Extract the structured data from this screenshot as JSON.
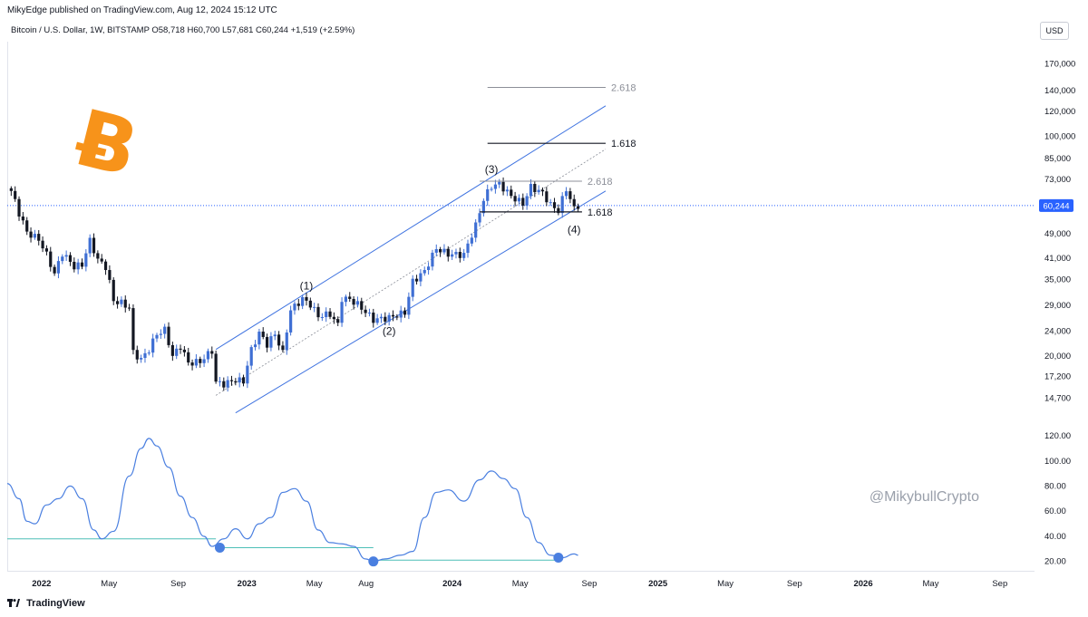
{
  "header": {
    "published_line": "MikyEdge published on TradingView.com, Aug 12, 2024 15:12 UTC",
    "symbol_line": "Bitcoin / U.S. Dollar, 1W, BITSTAMP  O58,718  H60,700  L57,681  C60,244  +1,519 (+2.59%)",
    "currency_button": "USD"
  },
  "footer": {
    "brand": "TradingView"
  },
  "watermark": "@MikybullCrypto",
  "colors": {
    "up_candle": "#3f6fd4",
    "down_candle": "#131722",
    "channel": "#3f73e0",
    "oscillator": "#4a7fe0",
    "oscillator_level": "#4dbfb7",
    "fib_dark": "#131722",
    "fib_light": "#8c8f98",
    "bitcoin_orange": "#f7931a",
    "price_label_bg": "#2962ff"
  },
  "chart_data": [
    {
      "type": "candlestick",
      "title": "Bitcoin / U.S. Dollar, 1W, BITSTAMP",
      "y_scale": "log",
      "ylim": [
        12000,
        200000
      ],
      "y_ticks": [
        14700,
        17200,
        20000,
        24000,
        29000,
        35000,
        41000,
        49000,
        60244,
        73000,
        85000,
        100000,
        120000,
        140000,
        170000
      ],
      "y_tick_labels": [
        "14,700",
        "17,200",
        "20,000",
        "24,000",
        "29,000",
        "35,000",
        "41,000",
        "49,000",
        "60,244",
        "73,000",
        "85,000",
        "100,000",
        "120,000",
        "140,000",
        "170,000"
      ],
      "last_price": 60244,
      "last_price_label": "60,244",
      "x_range": [
        "2021-11-01",
        "2026-10-31"
      ],
      "x_ticks": [
        {
          "date": "2022-01-01",
          "label": "2022"
        },
        {
          "date": "2022-05-01",
          "label": "May"
        },
        {
          "date": "2022-09-01",
          "label": "Sep"
        },
        {
          "date": "2023-01-01",
          "label": "2023"
        },
        {
          "date": "2023-05-01",
          "label": "May"
        },
        {
          "date": "2023-08-01",
          "label": "Aug"
        },
        {
          "date": "2024-01-01",
          "label": "2024"
        },
        {
          "date": "2024-05-01",
          "label": "May"
        },
        {
          "date": "2024-09-01",
          "label": "Sep"
        },
        {
          "date": "2025-01-01",
          "label": "2025"
        },
        {
          "date": "2025-05-01",
          "label": "May"
        },
        {
          "date": "2025-09-01",
          "label": "Sep"
        },
        {
          "date": "2026-01-01",
          "label": "2026"
        },
        {
          "date": "2026-05-01",
          "label": "May"
        },
        {
          "date": "2026-09-01",
          "label": "Sep"
        }
      ],
      "price_path": [
        [
          "2021-11-08",
          67000
        ],
        [
          "2021-11-22",
          57000
        ],
        [
          "2021-12-06",
          49500
        ],
        [
          "2021-12-27",
          47000
        ],
        [
          "2022-01-10",
          42000
        ],
        [
          "2022-01-24",
          36500
        ],
        [
          "2022-02-07",
          42500
        ],
        [
          "2022-02-28",
          38500
        ],
        [
          "2022-03-14",
          39000
        ],
        [
          "2022-03-28",
          46500
        ],
        [
          "2022-04-11",
          40500
        ],
        [
          "2022-04-25",
          38500
        ],
        [
          "2022-05-09",
          30000
        ],
        [
          "2022-05-23",
          29500
        ],
        [
          "2022-06-06",
          28500
        ],
        [
          "2022-06-13",
          20500
        ],
        [
          "2022-06-27",
          19500
        ],
        [
          "2022-07-11",
          21000
        ],
        [
          "2022-07-25",
          23500
        ],
        [
          "2022-08-08",
          24200
        ],
        [
          "2022-08-22",
          20000
        ],
        [
          "2022-09-05",
          21500
        ],
        [
          "2022-09-19",
          19000
        ],
        [
          "2022-10-10",
          19200
        ],
        [
          "2022-10-31",
          20800
        ],
        [
          "2022-11-07",
          16500
        ],
        [
          "2022-11-21",
          16300
        ],
        [
          "2022-12-12",
          16800
        ],
        [
          "2022-12-26",
          16600
        ],
        [
          "2023-01-09",
          20900
        ],
        [
          "2023-01-23",
          23700
        ],
        [
          "2023-02-06",
          21800
        ],
        [
          "2023-02-20",
          23500
        ],
        [
          "2023-03-06",
          20400
        ],
        [
          "2023-03-20",
          28000
        ],
        [
          "2023-04-10",
          30400
        ],
        [
          "2023-04-24",
          29200
        ],
        [
          "2023-05-08",
          26800
        ],
        [
          "2023-05-29",
          27200
        ],
        [
          "2023-06-12",
          25100
        ],
        [
          "2023-06-19",
          30500
        ],
        [
          "2023-07-03",
          30300
        ],
        [
          "2023-07-17",
          29200
        ],
        [
          "2023-08-14",
          26100
        ],
        [
          "2023-09-11",
          26500
        ],
        [
          "2023-10-09",
          27500
        ],
        [
          "2023-10-23",
          34500
        ],
        [
          "2023-11-13",
          37200
        ],
        [
          "2023-12-04",
          44000
        ],
        [
          "2023-12-25",
          42200
        ],
        [
          "2024-01-22",
          42000
        ],
        [
          "2024-02-12",
          52000
        ],
        [
          "2024-02-26",
          63000
        ],
        [
          "2024-03-11",
          69500
        ],
        [
          "2024-03-25",
          70500
        ],
        [
          "2024-04-15",
          64500
        ],
        [
          "2024-05-06",
          61000
        ],
        [
          "2024-05-20",
          69000
        ],
        [
          "2024-06-10",
          66000
        ],
        [
          "2024-06-24",
          60500
        ],
        [
          "2024-07-08",
          58000
        ],
        [
          "2024-07-22",
          68000
        ],
        [
          "2024-08-05",
          58700
        ],
        [
          "2024-08-12",
          60244
        ]
      ],
      "channel": {
        "upper_line": [
          [
            "2022-11-07",
            21000
          ],
          [
            "2024-09-30",
            125000
          ]
        ],
        "middle_line": [
          [
            "2022-11-07",
            15000
          ],
          [
            "2024-09-30",
            91000
          ]
        ],
        "lower_line": [
          [
            "2022-12-12",
            13200
          ],
          [
            "2024-09-30",
            67000
          ]
        ]
      },
      "fib_levels": [
        {
          "label": "2.618",
          "value": 143000,
          "from": "2024-03-04",
          "to": "2024-09-30",
          "style": "light"
        },
        {
          "label": "1.618",
          "value": 95000,
          "from": "2024-03-04",
          "to": "2024-09-30",
          "style": "dark"
        },
        {
          "label": "2.618",
          "value": 72000,
          "from": "2024-02-19",
          "to": "2024-08-19",
          "style": "light"
        },
        {
          "label": "1.618",
          "value": 57500,
          "from": "2024-02-19",
          "to": "2024-08-19",
          "style": "dark"
        }
      ],
      "wave_labels": [
        {
          "label": "(1)",
          "date": "2023-04-17",
          "value": 33500
        },
        {
          "label": "(2)",
          "date": "2023-09-11",
          "value": 24000
        },
        {
          "label": "(3)",
          "date": "2024-03-11",
          "value": 78500
        },
        {
          "label": "(4)",
          "date": "2024-08-05",
          "value": 50500
        }
      ]
    },
    {
      "type": "line",
      "title": "",
      "ylim": [
        14,
        128
      ],
      "y_ticks": [
        20,
        40,
        60,
        80,
        100,
        120
      ],
      "y_tick_labels": [
        "20.00",
        "40.00",
        "60.00",
        "80.00",
        "100.00",
        "120.00"
      ],
      "series": [
        {
          "values": [
            [
              "2021-11-01",
              82
            ],
            [
              "2021-11-22",
              70
            ],
            [
              "2021-12-06",
              52
            ],
            [
              "2021-12-20",
              50
            ],
            [
              "2022-01-10",
              65
            ],
            [
              "2022-01-31",
              70
            ],
            [
              "2022-02-21",
              80
            ],
            [
              "2022-03-14",
              70
            ],
            [
              "2022-04-04",
              45
            ],
            [
              "2022-04-18",
              38
            ],
            [
              "2022-05-09",
              44
            ],
            [
              "2022-06-06",
              88
            ],
            [
              "2022-06-27",
              110
            ],
            [
              "2022-07-11",
              118
            ],
            [
              "2022-07-25",
              112
            ],
            [
              "2022-08-15",
              95
            ],
            [
              "2022-09-05",
              72
            ],
            [
              "2022-09-26",
              55
            ],
            [
              "2022-10-17",
              40
            ],
            [
              "2022-10-31",
              32
            ],
            [
              "2022-11-21",
              38
            ],
            [
              "2022-12-12",
              46
            ],
            [
              "2023-01-02",
              38
            ],
            [
              "2023-01-23",
              50
            ],
            [
              "2023-02-13",
              55
            ],
            [
              "2023-03-06",
              75
            ],
            [
              "2023-03-27",
              78
            ],
            [
              "2023-04-17",
              68
            ],
            [
              "2023-05-08",
              45
            ],
            [
              "2023-05-29",
              35
            ],
            [
              "2023-06-19",
              34
            ],
            [
              "2023-07-10",
              32
            ],
            [
              "2023-07-31",
              22
            ],
            [
              "2023-08-14",
              20
            ],
            [
              "2023-09-04",
              22
            ],
            [
              "2023-10-02",
              25
            ],
            [
              "2023-10-23",
              28
            ],
            [
              "2023-11-13",
              55
            ],
            [
              "2023-12-04",
              75
            ],
            [
              "2023-12-25",
              77
            ],
            [
              "2024-01-22",
              68
            ],
            [
              "2024-02-19",
              85
            ],
            [
              "2024-03-11",
              92
            ],
            [
              "2024-04-01",
              86
            ],
            [
              "2024-04-22",
              78
            ],
            [
              "2024-05-13",
              55
            ],
            [
              "2024-06-03",
              35
            ],
            [
              "2024-06-24",
              25
            ],
            [
              "2024-07-15",
              23
            ],
            [
              "2024-08-05",
              26
            ],
            [
              "2024-08-12",
              25
            ]
          ]
        }
      ],
      "reference_lines": [
        {
          "value": 38,
          "from": "2021-11-01",
          "to": "2022-11-07"
        },
        {
          "value": 31,
          "from": "2022-11-07",
          "to": "2023-08-14"
        },
        {
          "value": 21,
          "from": "2023-08-14",
          "to": "2024-07-15"
        }
      ],
      "markers": [
        {
          "date": "2022-11-14",
          "value": 31
        },
        {
          "date": "2023-08-14",
          "value": 20
        },
        {
          "date": "2024-07-08",
          "value": 23
        }
      ]
    }
  ]
}
